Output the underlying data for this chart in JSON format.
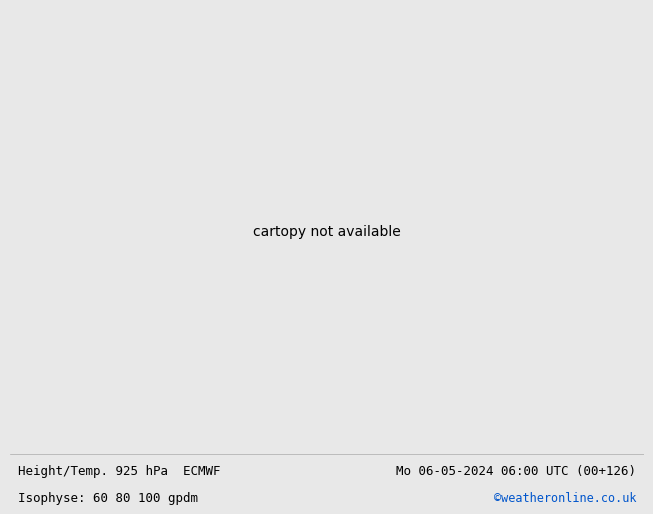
{
  "title_left_line1": "Height/Temp. 925 hPa  ECMWF",
  "title_right_line1": "Mo 06-05-2024 06:00 UTC (00+126)",
  "title_left_line2": "Isophyse: 60 80 100 gpdm",
  "title_right_line2": "©weatheronline.co.uk",
  "text_color_black": "#000000",
  "text_color_blue": "#0055cc",
  "font_size_main": 9.0,
  "font_size_copy": 8.5,
  "ocean_color": "#e8e8e8",
  "land_color": "#c8f0b0",
  "border_color": "#888888",
  "coastline_color": "#888888",
  "bottom_bar_color": "#ffffff",
  "lon_min": 60,
  "lon_max": 200,
  "lat_min": -20,
  "lat_max": 70,
  "ensemble_colors": [
    "#888888",
    "#888888",
    "#888888",
    "#888888",
    "#888888",
    "#888888",
    "#888888",
    "#888888",
    "#888888",
    "#888888",
    "#888888",
    "#888888",
    "#888888",
    "#888888",
    "#888888",
    "#888888",
    "#888888",
    "#888888",
    "#888888",
    "#888888",
    "#888888",
    "#888888",
    "#888888",
    "#888888",
    "#888888",
    "#888888",
    "#888888",
    "#888888",
    "#888888",
    "#888888",
    "#888888",
    "#888888",
    "#888888",
    "#888888",
    "#888888",
    "#888888",
    "#888888",
    "#888888",
    "#888888",
    "#888888",
    "#ff00ff",
    "#ff6600",
    "#0000ff",
    "#00ccff",
    "#ffcc00",
    "#ff0000",
    "#00cc00",
    "#aa00ff",
    "#ff88aa",
    "#00aaaa",
    "#ff4400",
    "#4444ff",
    "#ff00ff",
    "#ff6600",
    "#0000ff",
    "#00ccff",
    "#ffcc00",
    "#ff0000",
    "#00cc00",
    "#aa00ff"
  ],
  "contour_seed": 42,
  "n_gray_lines": 40,
  "n_color_lines": 20
}
